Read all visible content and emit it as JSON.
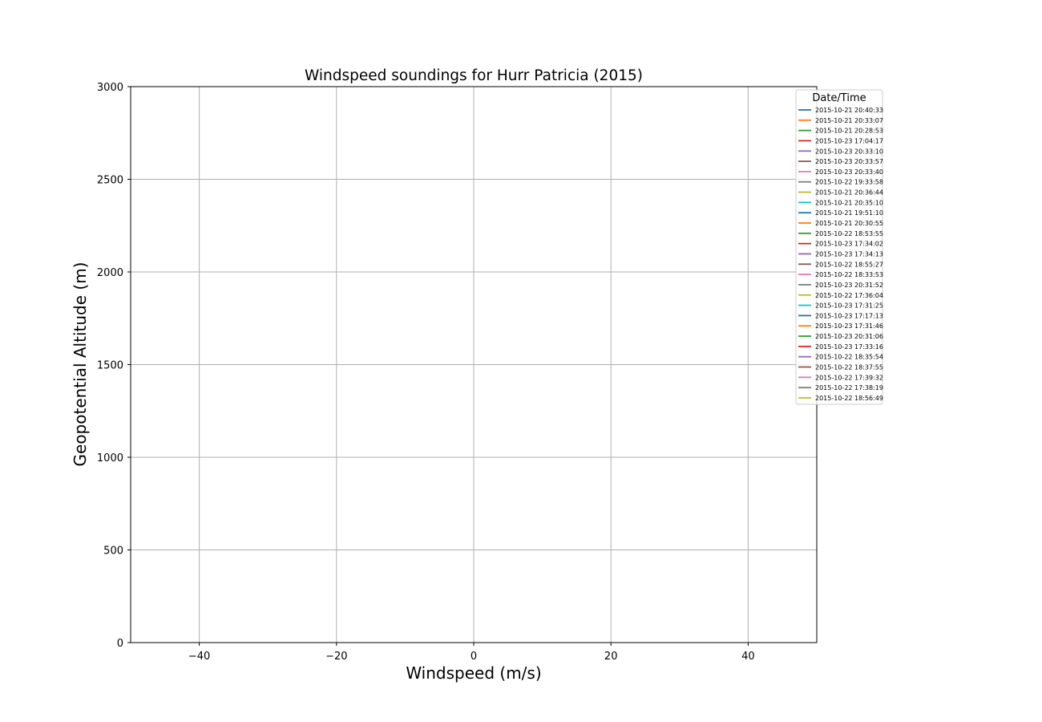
{
  "chart_data": {
    "type": "line",
    "title": "Windspeed soundings for Hurr Patricia (2015)",
    "xlabel": "Windspeed (m/s)",
    "ylabel": "Geopotential Altitude (m)",
    "xlim": [
      -50,
      50
    ],
    "ylim": [
      0,
      3000
    ],
    "xticks": [
      -40,
      -20,
      0,
      20,
      40
    ],
    "xtick_labels": [
      "−40",
      "−20",
      "0",
      "20",
      "40"
    ],
    "yticks": [
      0,
      500,
      1000,
      1500,
      2000,
      2500,
      3000
    ],
    "ytick_labels": [
      "0",
      "500",
      "1000",
      "1500",
      "2000",
      "2500",
      "3000"
    ],
    "grid": true,
    "legend": {
      "title": "Date/Time",
      "placement": "upper-right-outside"
    },
    "series": [
      {
        "name": "2015-10-21 20:40:33",
        "color": "#1f77b4",
        "points": []
      },
      {
        "name": "2015-10-21 20:33:07",
        "color": "#ff7f0e",
        "points": []
      },
      {
        "name": "2015-10-21 20:28:53",
        "color": "#2ca02c",
        "points": []
      },
      {
        "name": "2015-10-23 17:04:17",
        "color": "#d62728",
        "points": []
      },
      {
        "name": "2015-10-23 20:33:10",
        "color": "#9467bd",
        "points": []
      },
      {
        "name": "2015-10-23 20:33:57",
        "color": "#8c564b",
        "points": []
      },
      {
        "name": "2015-10-23 20:33:40",
        "color": "#e377c2",
        "points": []
      },
      {
        "name": "2015-10-22 19:33:58",
        "color": "#7f7f7f",
        "points": []
      },
      {
        "name": "2015-10-21 20:36:44",
        "color": "#bcbd22",
        "points": []
      },
      {
        "name": "2015-10-21 20:35:10",
        "color": "#17becf",
        "points": []
      },
      {
        "name": "2015-10-21 19:51:10",
        "color": "#1f77b4",
        "points": []
      },
      {
        "name": "2015-10-21 20:30:55",
        "color": "#ff7f0e",
        "points": []
      },
      {
        "name": "2015-10-22 18:53:55",
        "color": "#2ca02c",
        "points": []
      },
      {
        "name": "2015-10-23 17:34:02",
        "color": "#d62728",
        "points": []
      },
      {
        "name": "2015-10-23 17:34:13",
        "color": "#9467bd",
        "points": []
      },
      {
        "name": "2015-10-22 18:55:27",
        "color": "#8c564b",
        "points": []
      },
      {
        "name": "2015-10-22 18:33:53",
        "color": "#e377c2",
        "points": []
      },
      {
        "name": "2015-10-23 20:31:52",
        "color": "#7f7f7f",
        "points": []
      },
      {
        "name": "2015-10-22 17:36:04",
        "color": "#bcbd22",
        "points": []
      },
      {
        "name": "2015-10-23 17:31:25",
        "color": "#17becf",
        "points": []
      },
      {
        "name": "2015-10-23 17:17:13",
        "color": "#1f77b4",
        "points": []
      },
      {
        "name": "2015-10-23 17:31:46",
        "color": "#ff7f0e",
        "points": []
      },
      {
        "name": "2015-10-23 20:31:06",
        "color": "#2ca02c",
        "points": []
      },
      {
        "name": "2015-10-23 17:33:16",
        "color": "#d62728",
        "points": []
      },
      {
        "name": "2015-10-22 18:35:54",
        "color": "#9467bd",
        "points": []
      },
      {
        "name": "2015-10-22 18:37:55",
        "color": "#8c564b",
        "points": []
      },
      {
        "name": "2015-10-22 17:39:32",
        "color": "#e377c2",
        "points": []
      },
      {
        "name": "2015-10-22 17:38:19",
        "color": "#7f7f7f",
        "points": []
      },
      {
        "name": "2015-10-22 18:56:49",
        "color": "#bcbd22",
        "points": []
      }
    ]
  }
}
